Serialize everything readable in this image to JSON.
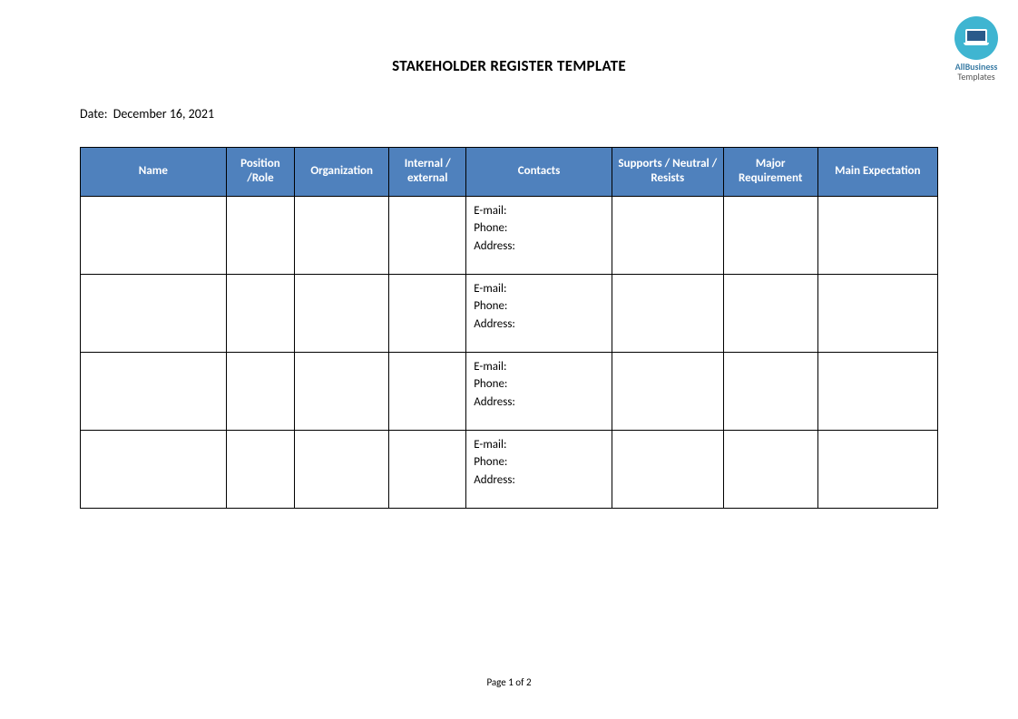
{
  "logo": {
    "line1": "AllBusiness",
    "line2": "Templates",
    "circle_color": "#3fb5d1",
    "text_color": "#3a7ca5"
  },
  "title": "STAKEHOLDER REGISTER TEMPLATE",
  "date_label": "Date:",
  "date_value": "December 16, 2021",
  "table": {
    "header_bg": "#4f81bd",
    "header_fg": "#ffffff",
    "border_color": "#000000",
    "columns": [
      {
        "label": "Name",
        "width": "17%"
      },
      {
        "label": "Position /Role",
        "width": "8%"
      },
      {
        "label": "Organization",
        "width": "11%"
      },
      {
        "label": "Internal / external",
        "width": "9%"
      },
      {
        "label": "Contacts",
        "width": "17%"
      },
      {
        "label": "Supports / Neutral / Resists",
        "width": "13%"
      },
      {
        "label": "Major Requirement",
        "width": "11%"
      },
      {
        "label": "Main Expectation",
        "width": "14%"
      }
    ],
    "contact_fields": [
      "E-mail:",
      "Phone:",
      "Address:"
    ],
    "row_count": 4
  },
  "footer": {
    "page_label": "Page",
    "page_current": 1,
    "page_sep": "of",
    "page_total": 2
  }
}
